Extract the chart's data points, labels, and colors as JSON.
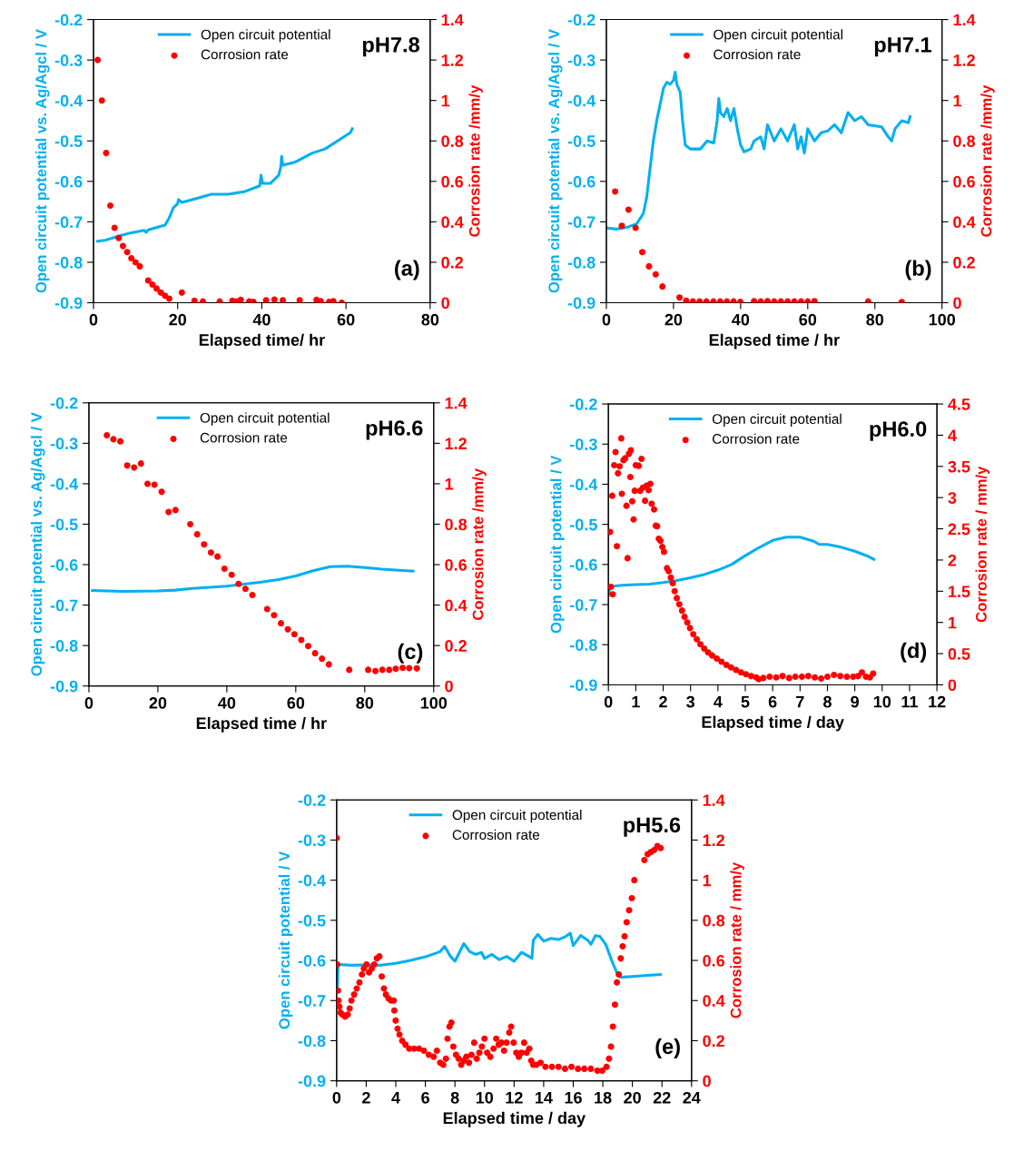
{
  "chart_data": [
    {
      "type": "line",
      "xlabel": "Elapsed time/ hr",
      "ylabel": "Open circuit potential vs. Ag/Agcl / V",
      "y2label": "Corrosion rate /mm/y",
      "annotations": [
        "pH7.8",
        "(a)"
      ],
      "xlim": [
        0,
        80
      ],
      "xticks": [
        0,
        20,
        40,
        60,
        80
      ],
      "ylim": [
        -0.9,
        -0.2
      ],
      "yticks": [
        -0.9,
        -0.8,
        -0.7,
        -0.6,
        -0.5,
        -0.4,
        -0.3,
        -0.2
      ],
      "y2lim": [
        0,
        1.4
      ],
      "y2ticks": [
        0,
        0.2,
        0.4,
        0.6,
        0.8,
        1,
        1.2,
        1.4
      ],
      "legend": "top",
      "series": [
        {
          "name": "Open circuit potential",
          "type": "line",
          "marker": "none",
          "color": "#00b0f0",
          "x": [
            1,
            3,
            6,
            9,
            12,
            12.5,
            13,
            17,
            18,
            19,
            20,
            20.2,
            21,
            25,
            28,
            32,
            36,
            39.5,
            39.8,
            40.2,
            42,
            44,
            44.5,
            44.7,
            45,
            48,
            52,
            55,
            58,
            61,
            61.5
          ],
          "values": [
            -0.748,
            -0.745,
            -0.735,
            -0.727,
            -0.721,
            -0.726,
            -0.72,
            -0.708,
            -0.69,
            -0.665,
            -0.655,
            -0.645,
            -0.652,
            -0.641,
            -0.632,
            -0.632,
            -0.625,
            -0.611,
            -0.585,
            -0.605,
            -0.605,
            -0.585,
            -0.565,
            -0.538,
            -0.56,
            -0.552,
            -0.53,
            -0.52,
            -0.5,
            -0.48,
            -0.47
          ]
        },
        {
          "name": "Corrosion rate",
          "type": "scatter",
          "marker": "circle",
          "axis": "y2",
          "color": "#ff0000",
          "x": [
            1,
            2,
            3,
            4,
            5,
            6,
            7,
            8,
            9,
            10,
            11,
            13,
            14,
            15,
            16,
            17,
            18,
            21,
            24,
            26,
            30,
            33,
            34,
            35,
            37,
            38,
            41,
            43,
            45,
            49,
            53,
            54,
            56,
            57,
            59
          ],
          "values": [
            1.2,
            1.0,
            0.74,
            0.48,
            0.37,
            0.32,
            0.28,
            0.25,
            0.22,
            0.2,
            0.18,
            0.11,
            0.09,
            0.07,
            0.05,
            0.035,
            0.02,
            0.05,
            0.01,
            0.006,
            0.006,
            0.01,
            0.006,
            0.014,
            0.006,
            0.004,
            0.012,
            0.016,
            0.012,
            0.012,
            0.014,
            0.008,
            0.004,
            0.008,
            0.0
          ]
        }
      ]
    },
    {
      "type": "line",
      "xlabel": "Elapsed time / hr",
      "ylabel": "Open circuit potential vs. Ag/Agcl / V",
      "y2label": "Corrosion rate /mm/y",
      "annotations": [
        "pH7.1",
        "(b)"
      ],
      "xlim": [
        0,
        100
      ],
      "xticks": [
        0,
        20,
        40,
        60,
        80,
        100
      ],
      "ylim": [
        -0.9,
        -0.2
      ],
      "yticks": [
        -0.9,
        -0.8,
        -0.7,
        -0.6,
        -0.5,
        -0.4,
        -0.3,
        -0.2
      ],
      "y2lim": [
        0,
        1.4
      ],
      "y2ticks": [
        0,
        0.2,
        0.4,
        0.6,
        0.8,
        1,
        1.2,
        1.4
      ],
      "legend": "top",
      "series": [
        {
          "name": "Open circuit potential",
          "type": "line",
          "marker": "none",
          "color": "#00b0f0",
          "x": [
            0,
            3,
            6,
            9,
            11,
            12,
            13,
            14,
            15,
            16,
            17,
            18,
            19,
            20,
            20.5,
            21,
            22,
            22.7,
            23.5,
            25,
            28,
            30,
            32,
            33,
            33.5,
            34,
            35,
            36,
            37,
            38,
            39,
            40,
            41,
            43,
            44,
            46,
            47,
            48,
            50,
            52,
            54,
            56,
            57,
            58,
            59,
            60,
            62,
            64,
            66,
            68,
            70,
            72,
            74,
            76,
            78,
            82,
            84,
            85,
            86,
            88,
            90,
            90.5
          ],
          "values": [
            -0.715,
            -0.718,
            -0.714,
            -0.705,
            -0.68,
            -0.64,
            -0.57,
            -0.5,
            -0.45,
            -0.41,
            -0.37,
            -0.355,
            -0.36,
            -0.35,
            -0.33,
            -0.36,
            -0.38,
            -0.45,
            -0.51,
            -0.52,
            -0.52,
            -0.5,
            -0.505,
            -0.45,
            -0.395,
            -0.43,
            -0.44,
            -0.42,
            -0.45,
            -0.42,
            -0.47,
            -0.51,
            -0.527,
            -0.52,
            -0.5,
            -0.49,
            -0.52,
            -0.46,
            -0.5,
            -0.47,
            -0.5,
            -0.46,
            -0.52,
            -0.49,
            -0.53,
            -0.47,
            -0.5,
            -0.48,
            -0.475,
            -0.46,
            -0.48,
            -0.43,
            -0.45,
            -0.44,
            -0.46,
            -0.465,
            -0.49,
            -0.5,
            -0.47,
            -0.45,
            -0.455,
            -0.44
          ]
        },
        {
          "name": "Corrosion rate",
          "type": "scatter",
          "marker": "circle",
          "axis": "y2",
          "color": "#ff0000",
          "x": [
            2.6,
            4.6,
            6.6,
            8.7,
            10.7,
            12.7,
            14.7,
            16.7,
            21.8,
            23.8,
            25.8,
            27.8,
            29.8,
            31.9,
            33.9,
            35.9,
            37.9,
            39.9,
            44,
            46,
            48,
            50,
            52,
            54,
            56,
            58,
            60,
            62,
            78,
            88
          ],
          "values": [
            0.55,
            0.38,
            0.46,
            0.37,
            0.25,
            0.18,
            0.14,
            0.08,
            0.026,
            0.01,
            0.006,
            0.006,
            0.006,
            0.006,
            0.006,
            0.006,
            0.006,
            0.004,
            0.008,
            0.006,
            0.008,
            0.006,
            0.006,
            0.006,
            0.006,
            0.006,
            0.006,
            0.008,
            0.006,
            0.003
          ]
        }
      ]
    },
    {
      "type": "line",
      "xlabel": "Elapsed time / hr",
      "ylabel": "Open circuit potential vs. Ag/Agcl / V",
      "y2label": "Corrosion rate /mm/y",
      "annotations": [
        "pH6.6",
        "(c)"
      ],
      "xlim": [
        0,
        100
      ],
      "xticks": [
        0,
        20,
        40,
        60,
        80,
        100
      ],
      "ylim": [
        -0.9,
        -0.2
      ],
      "yticks": [
        -0.9,
        -0.8,
        -0.7,
        -0.6,
        -0.5,
        -0.4,
        -0.3,
        -0.2
      ],
      "y2lim": [
        0,
        1.4
      ],
      "y2ticks": [
        0,
        0.2,
        0.4,
        0.6,
        0.8,
        1,
        1.2,
        1.4
      ],
      "legend": "top",
      "series": [
        {
          "name": "Open circuit potential",
          "type": "line",
          "marker": "none",
          "color": "#00b0f0",
          "x": [
            1,
            10,
            20,
            25,
            30,
            40,
            50,
            55,
            60,
            65,
            70,
            75,
            80,
            85,
            90,
            94
          ],
          "values": [
            -0.664,
            -0.666,
            -0.665,
            -0.663,
            -0.659,
            -0.653,
            -0.643,
            -0.637,
            -0.628,
            -0.615,
            -0.605,
            -0.604,
            -0.607,
            -0.611,
            -0.614,
            -0.616
          ]
        },
        {
          "name": "Corrosion rate",
          "type": "scatter",
          "marker": "circle",
          "axis": "y2",
          "color": "#ff0000",
          "x": [
            5.2,
            7.1,
            9.1,
            11.1,
            13.1,
            15.1,
            17.0,
            19.0,
            21.1,
            23.1,
            25.1,
            29.4,
            31.4,
            33.4,
            35.4,
            37.3,
            39.3,
            41.4,
            43.4,
            45.4,
            47.4,
            51.7,
            53.7,
            55.7,
            57.7,
            59.6,
            61.6,
            63.6,
            65.6,
            67.6,
            69.6,
            75.5,
            81.0,
            83.1,
            85.1,
            87.1,
            89.0,
            91.0,
            92.9,
            95.1
          ],
          "values": [
            1.24,
            1.22,
            1.21,
            1.09,
            1.08,
            1.1,
            1.0,
            0.995,
            0.96,
            0.86,
            0.87,
            0.8,
            0.75,
            0.7,
            0.66,
            0.64,
            0.58,
            0.55,
            0.505,
            0.48,
            0.45,
            0.38,
            0.35,
            0.31,
            0.28,
            0.256,
            0.228,
            0.197,
            0.162,
            0.135,
            0.107,
            0.08,
            0.08,
            0.074,
            0.08,
            0.08,
            0.085,
            0.09,
            0.088,
            0.087
          ]
        }
      ]
    },
    {
      "type": "line",
      "xlabel": "Elapsed time / day",
      "ylabel": "Open circuit potential / V",
      "y2label": "Corrosion rate / mm/y",
      "annotations": [
        "pH6.0",
        "(d)"
      ],
      "xlim": [
        0,
        12
      ],
      "xticks": [
        0,
        1,
        2,
        3,
        4,
        5,
        6,
        7,
        8,
        9,
        10,
        11,
        12
      ],
      "ylim": [
        -0.9,
        -0.2
      ],
      "yticks": [
        -0.9,
        -0.8,
        -0.7,
        -0.6,
        -0.5,
        -0.4,
        -0.3,
        -0.2
      ],
      "y2lim": [
        0,
        4.5
      ],
      "y2ticks": [
        0,
        0.5,
        1,
        1.5,
        2,
        2.5,
        3,
        3.5,
        4,
        4.5
      ],
      "legend": "top",
      "series": [
        {
          "name": "Open circuit potential",
          "type": "line",
          "marker": "none",
          "color": "#00b0f0",
          "x": [
            0.02,
            0.05,
            0.5,
            1,
            1.5,
            2,
            2.5,
            3,
            3.5,
            4,
            4.5,
            5,
            5.5,
            6,
            6.5,
            7,
            7.5,
            7.7,
            8,
            8.5,
            9,
            9.5,
            9.7
          ],
          "values": [
            -0.675,
            -0.655,
            -0.652,
            -0.65,
            -0.649,
            -0.645,
            -0.64,
            -0.633,
            -0.625,
            -0.614,
            -0.6,
            -0.578,
            -0.558,
            -0.54,
            -0.532,
            -0.532,
            -0.542,
            -0.55,
            -0.55,
            -0.557,
            -0.567,
            -0.58,
            -0.587
          ]
        },
        {
          "name": "Corrosion rate",
          "type": "scatter",
          "marker": "circle",
          "axis": "y2",
          "color": "#ff0000",
          "x": [
            0.06,
            0.09,
            0.16,
            0.14,
            0.21,
            0.26,
            0.31,
            0.35,
            0.41,
            0.47,
            0.49,
            0.55,
            0.61,
            0.66,
            0.7,
            0.75,
            0.8,
            0.82,
            0.87,
            0.92,
            0.96,
            1.0,
            1.11,
            1.16,
            1.21,
            1.26,
            1.34,
            1.39,
            1.47,
            1.53,
            1.58,
            1.67,
            1.73,
            1.78,
            1.84,
            1.9,
            1.97,
            2.03,
            2.14,
            2.2,
            2.28,
            2.35,
            2.42,
            2.5,
            2.59,
            2.69,
            2.78,
            2.88,
            2.98,
            3.1,
            3.23,
            3.36,
            3.5,
            3.64,
            3.79,
            3.96,
            4.13,
            4.31,
            4.48,
            4.66,
            4.84,
            5.02,
            5.21,
            5.4,
            5.49,
            5.66,
            5.89,
            6.13,
            6.36,
            6.6,
            6.83,
            7.07,
            7.3,
            7.54,
            7.77,
            8.0,
            8.24,
            8.47,
            8.71,
            8.94,
            9.12,
            9.26,
            9.41,
            9.55,
            9.67
          ],
          "values": [
            2.45,
            1.57,
            1.45,
            3.03,
            3.52,
            3.73,
            2.22,
            3.39,
            3.5,
            3.95,
            3.06,
            3.6,
            3.63,
            2.87,
            2.03,
            3.7,
            3.33,
            3.76,
            2.94,
            2.65,
            3.11,
            3.52,
            3.51,
            3.11,
            3.62,
            3.16,
            2.95,
            3.19,
            3.12,
            3.22,
            2.9,
            2.81,
            2.55,
            2.54,
            2.34,
            2.31,
            2.21,
            2.13,
            1.87,
            1.82,
            1.72,
            1.63,
            1.5,
            1.39,
            1.29,
            1.19,
            1.09,
            1.0,
            0.91,
            0.81,
            0.73,
            0.65,
            0.58,
            0.52,
            0.47,
            0.42,
            0.37,
            0.32,
            0.28,
            0.24,
            0.2,
            0.17,
            0.14,
            0.12,
            0.09,
            0.11,
            0.13,
            0.12,
            0.14,
            0.11,
            0.13,
            0.13,
            0.14,
            0.12,
            0.1,
            0.13,
            0.16,
            0.14,
            0.13,
            0.13,
            0.14,
            0.2,
            0.13,
            0.12,
            0.18
          ]
        }
      ]
    },
    {
      "type": "line",
      "xlabel": "Elapsed time / day",
      "ylabel": "Open circuit potential / V",
      "y2label": "Corrosion rate / mm/y",
      "annotations": [
        "pH5.6",
        "(e)"
      ],
      "xlim": [
        0,
        24
      ],
      "xticks": [
        0,
        2,
        4,
        6,
        8,
        10,
        12,
        14,
        16,
        18,
        20,
        22,
        24
      ],
      "ylim": [
        -0.9,
        -0.2
      ],
      "yticks": [
        -0.9,
        -0.8,
        -0.7,
        -0.6,
        -0.5,
        -0.4,
        -0.3,
        -0.2
      ],
      "y2lim": [
        0,
        1.4
      ],
      "y2ticks": [
        0,
        0.2,
        0.4,
        0.6,
        0.8,
        1,
        1.2,
        1.4
      ],
      "legend": "top",
      "series": [
        {
          "name": "Open circuit potential",
          "type": "line",
          "marker": "none",
          "color": "#00b0f0",
          "x": [
            0,
            0.05,
            0.1,
            1,
            2,
            3,
            4,
            5,
            6,
            7,
            7.3,
            7.7,
            8,
            8.3,
            8.6,
            9,
            9.4,
            9.8,
            10,
            10.5,
            11,
            11.5,
            12,
            12.5,
            13,
            13.2,
            13.3,
            13.6,
            14,
            14.5,
            15,
            15.5,
            15.8,
            16,
            16.5,
            17,
            17.2,
            17.5,
            17.8,
            18.2,
            18.6,
            19,
            19.2,
            20,
            21,
            21.5,
            21.9
          ],
          "values": [
            -0.61,
            -0.67,
            -0.61,
            -0.612,
            -0.611,
            -0.612,
            -0.607,
            -0.6,
            -0.591,
            -0.578,
            -0.565,
            -0.59,
            -0.602,
            -0.58,
            -0.558,
            -0.578,
            -0.585,
            -0.58,
            -0.595,
            -0.585,
            -0.598,
            -0.59,
            -0.602,
            -0.58,
            -0.59,
            -0.595,
            -0.55,
            -0.535,
            -0.552,
            -0.545,
            -0.548,
            -0.54,
            -0.532,
            -0.563,
            -0.538,
            -0.55,
            -0.56,
            -0.538,
            -0.54,
            -0.56,
            -0.6,
            -0.635,
            -0.642,
            -0.64,
            -0.637,
            -0.636,
            -0.635
          ]
        },
        {
          "name": "Corrosion rate",
          "type": "scatter",
          "marker": "circle",
          "axis": "y2",
          "color": "#ff0000",
          "x": [
            0,
            0.04,
            0.09,
            0.13,
            0.18,
            0.26,
            0.39,
            0.57,
            0.75,
            0.88,
            1.0,
            1.18,
            1.36,
            1.54,
            1.71,
            1.84,
            2.02,
            2.19,
            2.37,
            2.54,
            2.72,
            2.89,
            3.05,
            3.2,
            3.33,
            3.51,
            3.68,
            3.86,
            3.9,
            3.99,
            4.12,
            4.25,
            4.43,
            4.65,
            4.91,
            5.24,
            5.57,
            5.9,
            6.23,
            6.56,
            6.78,
            7.0,
            7.21,
            7.39,
            7.5,
            7.63,
            7.76,
            7.89,
            8.07,
            8.25,
            8.42,
            8.6,
            8.77,
            8.95,
            9.12,
            9.3,
            9.47,
            9.65,
            9.82,
            10.0,
            10.18,
            10.39,
            10.61,
            10.79,
            10.96,
            11.14,
            11.32,
            11.49,
            11.67,
            11.8,
            11.97,
            12.15,
            12.32,
            12.5,
            12.68,
            12.85,
            13.03,
            13.16,
            13.29,
            13.51,
            13.79,
            14.12,
            14.56,
            15.0,
            15.44,
            15.88,
            16.32,
            16.75,
            17.19,
            17.63,
            17.96,
            18.25,
            18.42,
            18.55,
            18.68,
            18.82,
            18.95,
            19.08,
            19.21,
            19.34,
            19.47,
            19.61,
            19.78,
            19.96,
            20.13,
            20.81,
            21.03,
            21.25,
            21.47,
            21.69,
            21.91
          ],
          "values": [
            1.21,
            0.58,
            0.45,
            0.4,
            0.37,
            0.34,
            0.33,
            0.32,
            0.33,
            0.36,
            0.4,
            0.43,
            0.46,
            0.49,
            0.53,
            0.56,
            0.58,
            0.54,
            0.56,
            0.58,
            0.61,
            0.62,
            0.52,
            0.46,
            0.43,
            0.41,
            0.4,
            0.4,
            0.35,
            0.3,
            0.26,
            0.23,
            0.2,
            0.18,
            0.16,
            0.16,
            0.16,
            0.15,
            0.13,
            0.12,
            0.15,
            0.09,
            0.08,
            0.11,
            0.21,
            0.27,
            0.29,
            0.17,
            0.13,
            0.11,
            0.08,
            0.1,
            0.12,
            0.09,
            0.13,
            0.19,
            0.11,
            0.14,
            0.17,
            0.21,
            0.14,
            0.12,
            0.16,
            0.21,
            0.18,
            0.19,
            0.15,
            0.19,
            0.24,
            0.27,
            0.19,
            0.14,
            0.12,
            0.14,
            0.19,
            0.14,
            0.16,
            0.1,
            0.08,
            0.08,
            0.09,
            0.07,
            0.07,
            0.07,
            0.06,
            0.07,
            0.06,
            0.06,
            0.06,
            0.05,
            0.05,
            0.07,
            0.11,
            0.17,
            0.27,
            0.38,
            0.49,
            0.53,
            0.61,
            0.67,
            0.72,
            0.79,
            0.85,
            0.91,
            1.0,
            1.1,
            1.13,
            1.14,
            1.15,
            1.17,
            1.16
          ]
        }
      ]
    }
  ]
}
